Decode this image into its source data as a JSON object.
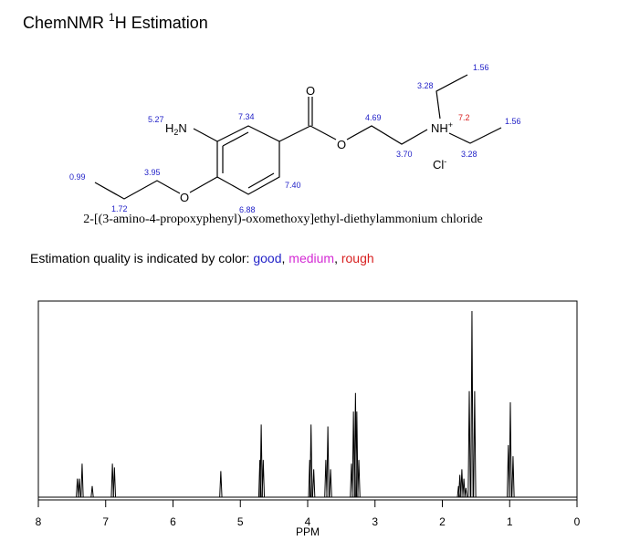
{
  "header": {
    "title": "ChemNMR ",
    "sup": "1",
    "title_end": "H Estimation"
  },
  "molecule": {
    "h2n": [
      "H",
      "2",
      "N"
    ],
    "nh": [
      "NH",
      "+"
    ],
    "cl": [
      "Cl",
      "-"
    ],
    "oxygens": [
      "O",
      "O",
      "O"
    ],
    "shifts": [
      {
        "text": "5.27",
        "quality": "good"
      },
      {
        "text": "7.34",
        "quality": "good"
      },
      {
        "text": "4.69",
        "quality": "good"
      },
      {
        "text": "3.28",
        "quality": "good"
      },
      {
        "text": "1.56",
        "quality": "good"
      },
      {
        "text": "7.2",
        "quality": "rough"
      },
      {
        "text": "1.56",
        "quality": "good"
      },
      {
        "text": "3.70",
        "quality": "good"
      },
      {
        "text": "3.28",
        "quality": "good"
      },
      {
        "text": "0.99",
        "quality": "good"
      },
      {
        "text": "3.95",
        "quality": "good"
      },
      {
        "text": "7.40",
        "quality": "good"
      },
      {
        "text": "1.72",
        "quality": "good"
      },
      {
        "text": "6.88",
        "quality": "good"
      }
    ],
    "name": "2-[(3-amino-4-propoxyphenyl)-oxomethoxy]ethyl-diethylammonium chloride"
  },
  "legend": {
    "intro": "Estimation quality is indicated by color: ",
    "separator": ", ",
    "items": [
      {
        "name": "good",
        "color": "#2323c8"
      },
      {
        "name": "medium",
        "color": "#d42ad4"
      },
      {
        "name": "rough",
        "color": "#d82020"
      }
    ]
  },
  "chart_data": {
    "type": "spectrum",
    "xlabel": "PPM",
    "xlim": [
      8,
      0
    ],
    "xticks": [
      8,
      7,
      6,
      5,
      4,
      3,
      2,
      1,
      0
    ],
    "ylim": [
      0,
      100
    ],
    "color": "#000000",
    "x": [
      7.42,
      7.39,
      7.35,
      7.2,
      6.9,
      6.87,
      5.29,
      4.71,
      4.69,
      4.66,
      3.97,
      3.95,
      3.91,
      3.73,
      3.7,
      3.66,
      3.35,
      3.32,
      3.29,
      3.27,
      3.24,
      1.76,
      1.74,
      1.71,
      1.68,
      1.65,
      1.6,
      1.56,
      1.52,
      1.02,
      0.99,
      0.95
    ],
    "values": [
      10,
      10,
      18,
      6,
      18,
      16,
      14,
      20,
      39,
      20,
      20,
      39,
      15,
      20,
      38,
      15,
      18,
      46,
      56,
      46,
      20,
      6,
      12,
      15,
      10,
      5,
      57,
      100,
      57,
      28,
      51,
      22
    ]
  }
}
